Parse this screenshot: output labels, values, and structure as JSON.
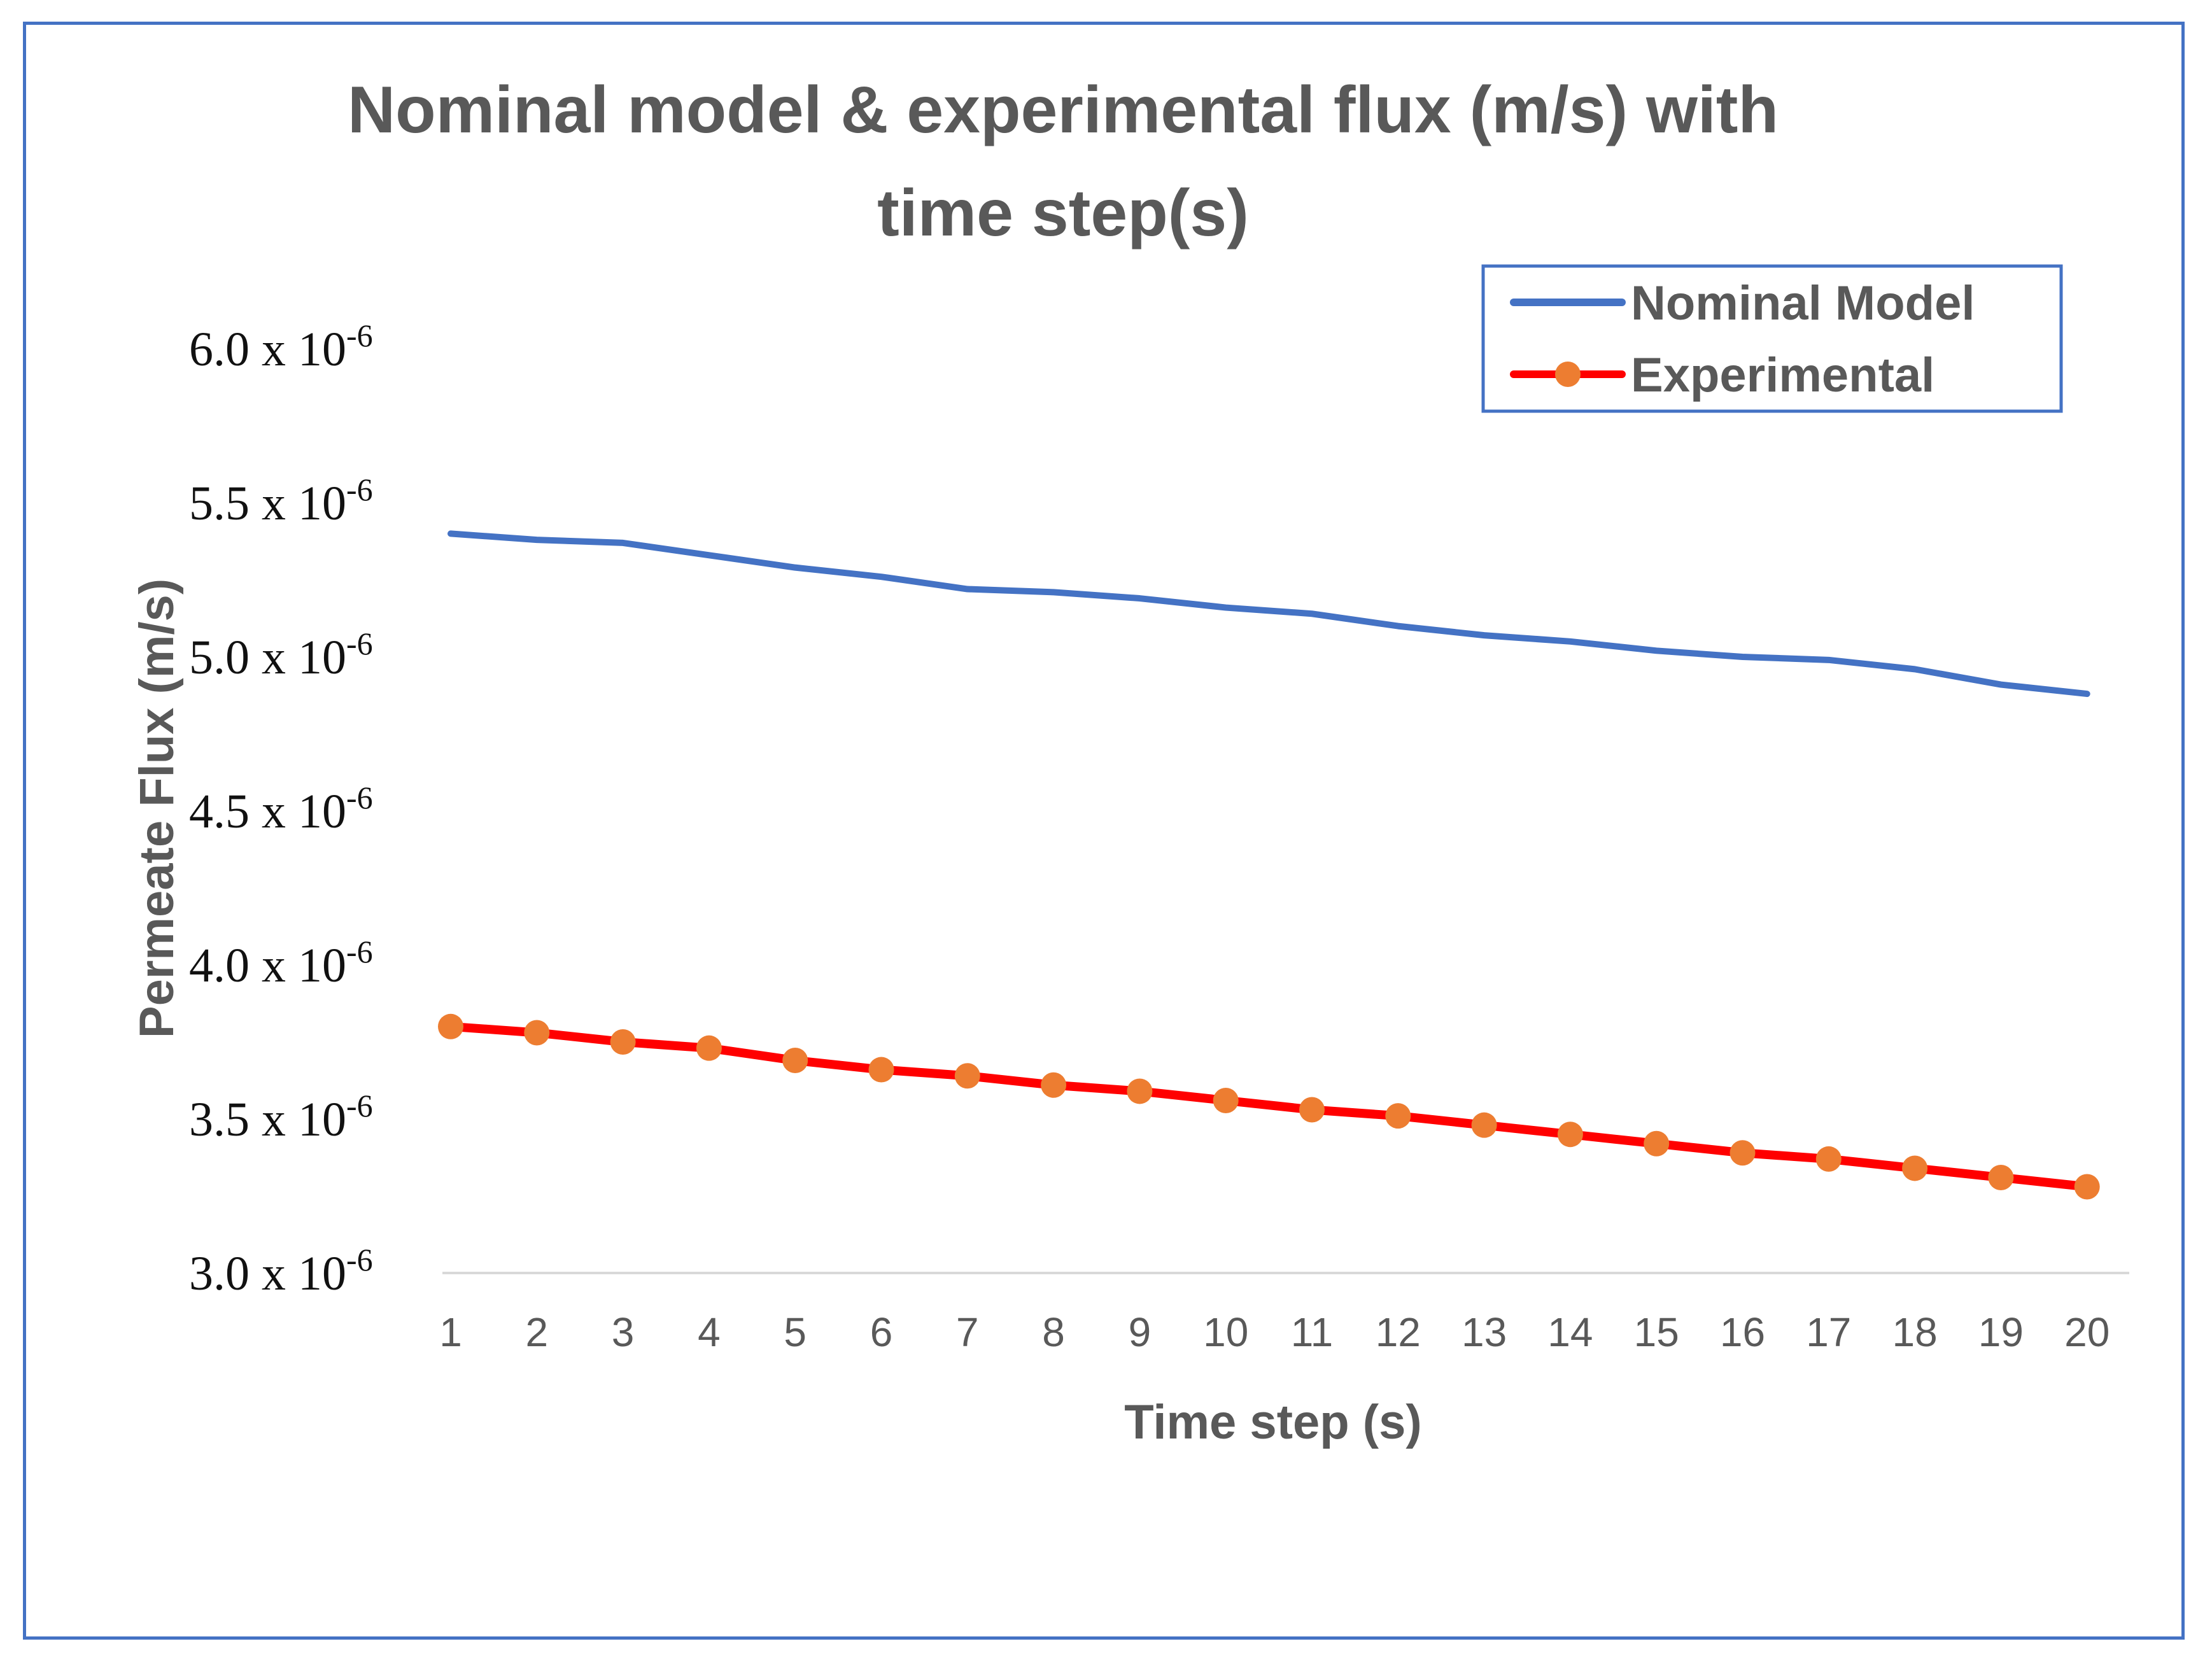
{
  "chart_data": {
    "type": "line",
    "title_lines": [
      "Nominal model & experimental flux (m/s) with",
      "time step(s)"
    ],
    "xlabel": "Time step (s)",
    "ylabel": "Permeate Flux  (m/s)",
    "x": [
      1,
      2,
      3,
      4,
      5,
      6,
      7,
      8,
      9,
      10,
      11,
      12,
      13,
      14,
      15,
      16,
      17,
      18,
      19,
      20
    ],
    "ylim": [
      3.0,
      6.0
    ],
    "yticks": [
      {
        "value": 6.0,
        "mantissa": "6.0 x 10",
        "exponent": "-6"
      },
      {
        "value": 5.5,
        "mantissa": "5.5 x 10",
        "exponent": "-6"
      },
      {
        "value": 5.0,
        "mantissa": "5.0 x 10",
        "exponent": "-6"
      },
      {
        "value": 4.5,
        "mantissa": "4.5 x 10",
        "exponent": "-6"
      },
      {
        "value": 4.0,
        "mantissa": "4.0 x 10",
        "exponent": "-6"
      },
      {
        "value": 3.5,
        "mantissa": "3.5 x 10",
        "exponent": "-6"
      },
      {
        "value": 3.0,
        "mantissa": "3.0 x 10",
        "exponent": "-6"
      }
    ],
    "y_unit_scale": "1e-6",
    "grid": false,
    "legend_position": "top-right",
    "series": [
      {
        "name": "Nominal Model",
        "color": "#4472c4",
        "markers": false,
        "values": [
          5.4,
          5.38,
          5.37,
          5.33,
          5.29,
          5.26,
          5.22,
          5.21,
          5.19,
          5.16,
          5.14,
          5.1,
          5.07,
          5.05,
          5.02,
          5.0,
          4.99,
          4.96,
          4.91,
          4.88
        ]
      },
      {
        "name": "Experimental",
        "color": "#ff0000",
        "marker_color": "#ed7d31",
        "markers": true,
        "values": [
          3.8,
          3.78,
          3.75,
          3.73,
          3.69,
          3.66,
          3.64,
          3.61,
          3.59,
          3.56,
          3.53,
          3.51,
          3.48,
          3.45,
          3.42,
          3.39,
          3.37,
          3.34,
          3.31,
          3.28
        ]
      }
    ]
  }
}
